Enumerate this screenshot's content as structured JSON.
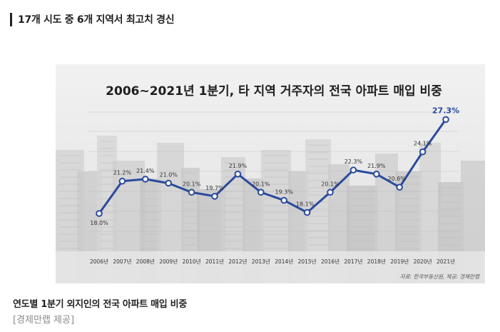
{
  "article": {
    "heading": "17개 시도 중 6개 지역서 최고치 경신",
    "caption": "연도별 1분기 외지인의 전국 아파트 매입 비중",
    "credit": "[경제만랩 제공]"
  },
  "chart_data": {
    "type": "line",
    "title": "2006~2021년 1분기, 타 지역 거주자의 전국 아파트 매입 비중",
    "categories": [
      "2006년",
      "2007년",
      "2008년",
      "2009년",
      "2010년",
      "2011년",
      "2012년",
      "2013년",
      "2014년",
      "2015년",
      "2016년",
      "2017년",
      "2018년",
      "2019년",
      "2020년",
      "2021년"
    ],
    "series": [
      {
        "values": [
          18.0,
          21.2,
          21.4,
          21.0,
          20.1,
          19.7,
          21.9,
          20.1,
          19.3,
          18.1,
          20.1,
          22.3,
          21.9,
          20.6,
          24.1,
          27.3
        ],
        "labels": [
          "18.0%",
          "21.2%",
          "21.4%",
          "21.0%",
          "20.1%",
          "19.7%",
          "21.9%",
          "20.1%",
          "19.3%",
          "18.1%",
          "20.1%",
          "22.3%",
          "21.9%",
          "20.6%",
          "24.1%",
          "27.3%"
        ]
      }
    ],
    "source": "자료: 한국부동산원, 제공: 경제만랩",
    "colors": {
      "line": "#2a4a9c",
      "highlight_label": "#2a4a9c",
      "marker_fill": "#ffffff"
    }
  }
}
